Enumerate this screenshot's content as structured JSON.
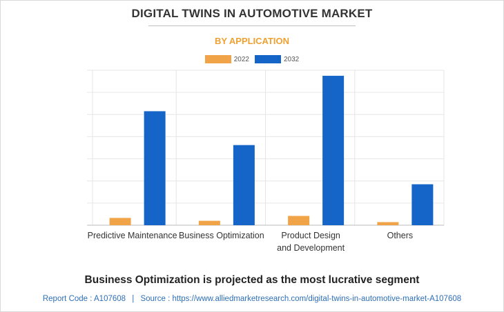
{
  "header": {
    "title": "DIGITAL TWINS IN AUTOMOTIVE MARKET",
    "subtitle": "BY APPLICATION",
    "subtitle_color": "#f0a030"
  },
  "chart_data": {
    "type": "bar",
    "title": "",
    "xlabel": "",
    "ylabel": "",
    "categories": [
      [
        "Predictive Maintenance"
      ],
      [
        "Business Optimization"
      ],
      [
        "Product Design",
        "and Development"
      ],
      [
        "Others"
      ]
    ],
    "series": [
      {
        "name": "2022",
        "color": "#f0a447",
        "values": [
          3.3,
          2.0,
          4.2,
          1.4
        ]
      },
      {
        "name": "2032",
        "color": "#1565c8",
        "values": [
          51.5,
          36.2,
          67.5,
          18.5
        ]
      }
    ],
    "ylim": [
      0,
      70
    ],
    "grid": true,
    "legend_position": "top-center"
  },
  "caption": "Business Optimization is projected as the most lucrative segment",
  "footer": {
    "report_code": "Report Code : A107608",
    "separator": "|",
    "source": "Source : https://www.alliedmarketresearch.com/digital-twins-in-automotive-market-A107608"
  }
}
